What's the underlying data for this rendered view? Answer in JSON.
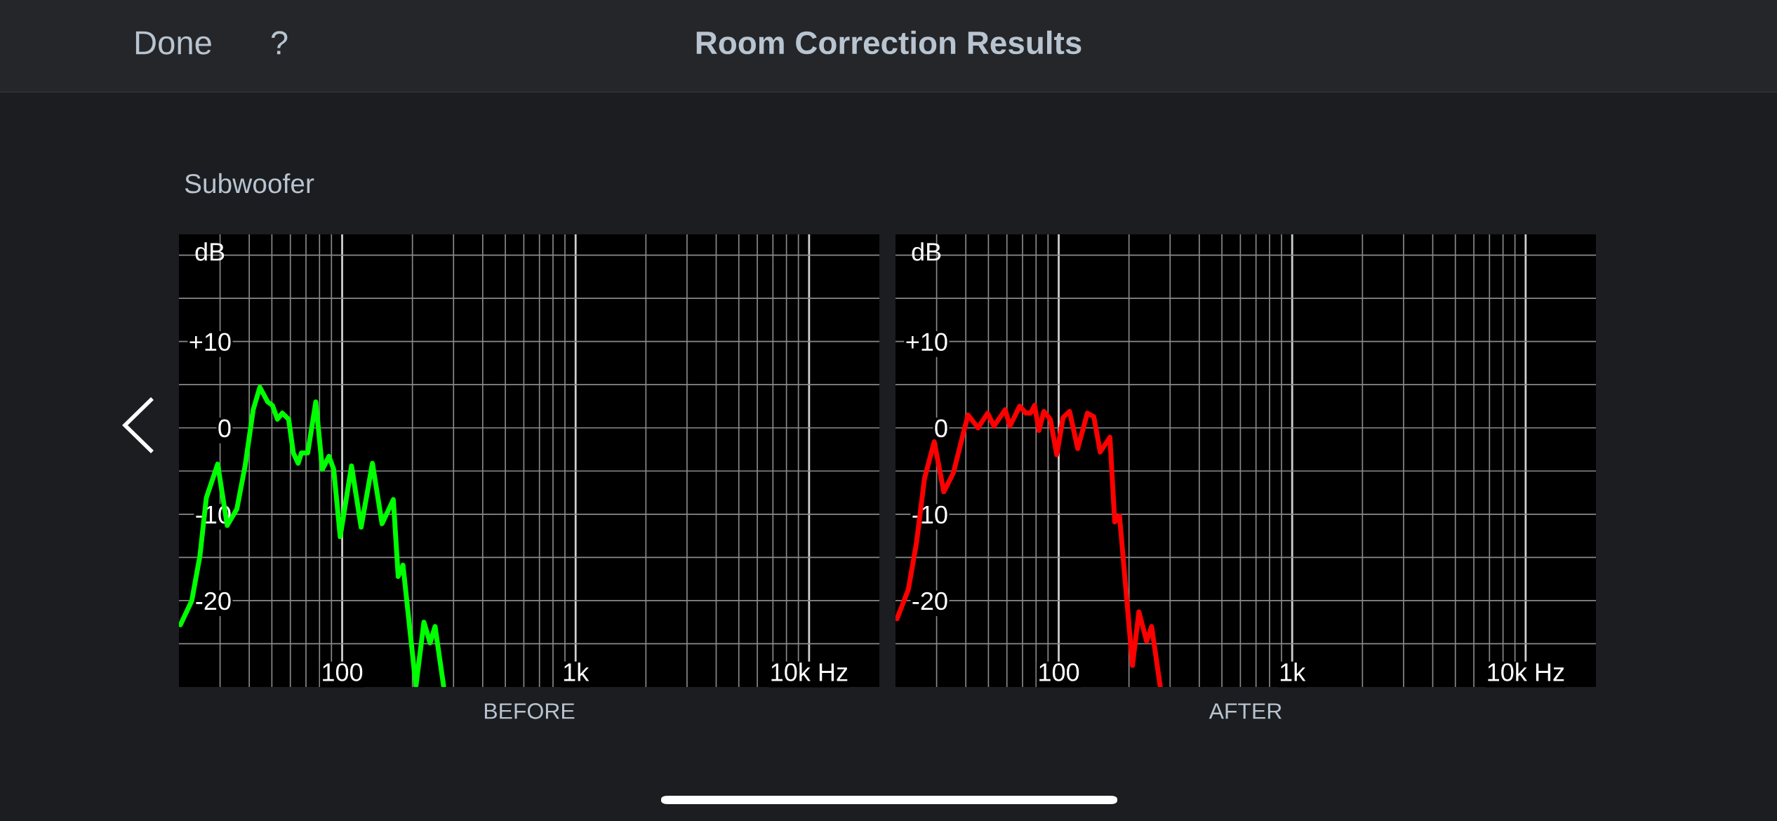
{
  "chart_data": [
    {
      "type": "line",
      "title": "Room Correction Results",
      "subtitle": "Subwoofer",
      "annotations": [
        "Done",
        "?"
      ],
      "xlabel": "BEFORE",
      "ylabel": "dB",
      "log": "x",
      "grid": true,
      "line_style": "solid",
      "marker": "none",
      "xlim": [
        20,
        20000
      ],
      "ylim": [
        -30,
        22.4
      ],
      "xticks": [
        {
          "value": 30,
          "label": null
        },
        {
          "value": 40,
          "label": null
        },
        {
          "value": 50,
          "label": null
        },
        {
          "value": 60,
          "label": null
        },
        {
          "value": 70,
          "label": null
        },
        {
          "value": 80,
          "label": null
        },
        {
          "value": 90,
          "label": null
        },
        100,
        {
          "value": 200,
          "label": null
        },
        {
          "value": 300,
          "label": null
        },
        {
          "value": 400,
          "label": null
        },
        {
          "value": 500,
          "label": null
        },
        {
          "value": 600,
          "label": null
        },
        {
          "value": 700,
          "label": null
        },
        {
          "value": 800,
          "label": null
        },
        {
          "value": 900,
          "label": null
        },
        {
          "value": 1000,
          "label": "1k"
        },
        {
          "value": 2000,
          "label": null
        },
        {
          "value": 3000,
          "label": null
        },
        {
          "value": 4000,
          "label": null
        },
        {
          "value": 5000,
          "label": null
        },
        {
          "value": 6000,
          "label": null
        },
        {
          "value": 7000,
          "label": null
        },
        {
          "value": 8000,
          "label": null
        },
        {
          "value": 9000,
          "label": null
        },
        {
          "value": 10000,
          "label": "10k Hz"
        }
      ],
      "yticks": [
        {
          "value": 20,
          "label": null
        },
        {
          "value": 15,
          "label": null
        },
        {
          "value": 10,
          "label": "+10"
        },
        {
          "value": 5,
          "label": null
        },
        0,
        {
          "value": -5,
          "label": null
        },
        -10,
        {
          "value": -15,
          "label": null
        },
        -20,
        {
          "value": -25,
          "label": null
        }
      ],
      "series": [
        {
          "color": "#00ff00",
          "x": [
            20.3,
            22.7,
            24.6,
            26.2,
            29.3,
            32.2,
            35.4,
            38.4,
            41.6,
            44.4,
            48.0,
            50.3,
            52.8,
            55.4,
            59.0,
            61.8,
            64.8,
            66.9,
            71.2,
            77.1,
            82.3,
            87.8,
            92.0,
            98.1,
            109.7,
            120.6,
            134.8,
            148.2,
            165.7,
            173.8,
            182.2,
            207,
            224,
            238,
            250,
            272
          ],
          "values": [
            -22.8,
            -20.0,
            -14.8,
            -8.1,
            -4.2,
            -11.3,
            -9.4,
            -4.4,
            2.1,
            4.7,
            3.0,
            2.6,
            1.0,
            1.7,
            1.0,
            -2.9,
            -4.1,
            -2.9,
            -2.9,
            3.0,
            -4.8,
            -3.3,
            -4.8,
            -12.6,
            -4.4,
            -11.5,
            -4.1,
            -11.1,
            -8.3,
            -17.2,
            -15.9,
            -29.9,
            -22.5,
            -24.9,
            -23.0,
            -29.9
          ]
        }
      ]
    },
    {
      "type": "line",
      "xlabel": "AFTER",
      "ylabel": "dB",
      "log": "x",
      "grid": true,
      "line_style": "solid",
      "marker": "none",
      "xlim": [
        20,
        20000
      ],
      "ylim": [
        -30,
        22.4
      ],
      "xticks": [
        {
          "value": 30,
          "label": null
        },
        {
          "value": 40,
          "label": null
        },
        {
          "value": 50,
          "label": null
        },
        {
          "value": 60,
          "label": null
        },
        {
          "value": 70,
          "label": null
        },
        {
          "value": 80,
          "label": null
        },
        {
          "value": 90,
          "label": null
        },
        100,
        {
          "value": 200,
          "label": null
        },
        {
          "value": 300,
          "label": null
        },
        {
          "value": 400,
          "label": null
        },
        {
          "value": 500,
          "label": null
        },
        {
          "value": 600,
          "label": null
        },
        {
          "value": 700,
          "label": null
        },
        {
          "value": 800,
          "label": null
        },
        {
          "value": 900,
          "label": null
        },
        {
          "value": 1000,
          "label": "1k"
        },
        {
          "value": 2000,
          "label": null
        },
        {
          "value": 3000,
          "label": null
        },
        {
          "value": 4000,
          "label": null
        },
        {
          "value": 5000,
          "label": null
        },
        {
          "value": 6000,
          "label": null
        },
        {
          "value": 7000,
          "label": null
        },
        {
          "value": 8000,
          "label": null
        },
        {
          "value": 9000,
          "label": null
        },
        {
          "value": 10000,
          "label": "10k Hz"
        }
      ],
      "yticks": [
        {
          "value": 20,
          "label": null
        },
        {
          "value": 15,
          "label": null
        },
        {
          "value": 10,
          "label": "+10"
        },
        {
          "value": 5,
          "label": null
        },
        0,
        {
          "value": -5,
          "label": null
        },
        -10,
        {
          "value": -15,
          "label": null
        },
        -20,
        {
          "value": -25,
          "label": null
        }
      ],
      "series": [
        {
          "color": "#ff0000",
          "x": [
            20.3,
            22.7,
            24.6,
            26.6,
            29.3,
            32.2,
            35.4,
            38.4,
            40.9,
            45.1,
            49.6,
            52.8,
            59.0,
            61.8,
            68.0,
            72.5,
            75.8,
            78.8,
            82.3,
            86.4,
            92.0,
            98.1,
            104.4,
            111.3,
            120.6,
            132.6,
            141.3,
            150.6,
            165.7,
            173.8,
            182.2,
            207,
            220.5,
            238,
            250,
            272
          ],
          "values": [
            -22.1,
            -18.7,
            -13.3,
            -5.9,
            -1.6,
            -7.4,
            -5.2,
            -1.4,
            1.5,
            0,
            1.7,
            0.2,
            2.1,
            0.2,
            2.5,
            1.7,
            1.7,
            2.6,
            -0.3,
            1.9,
            1.0,
            -3.1,
            1.2,
            1.9,
            -2.4,
            1.7,
            1.3,
            -2.8,
            -1.1,
            -10.9,
            -10.2,
            -27.5,
            -21.3,
            -24.7,
            -23.0,
            -29.9
          ]
        }
      ]
    }
  ]
}
